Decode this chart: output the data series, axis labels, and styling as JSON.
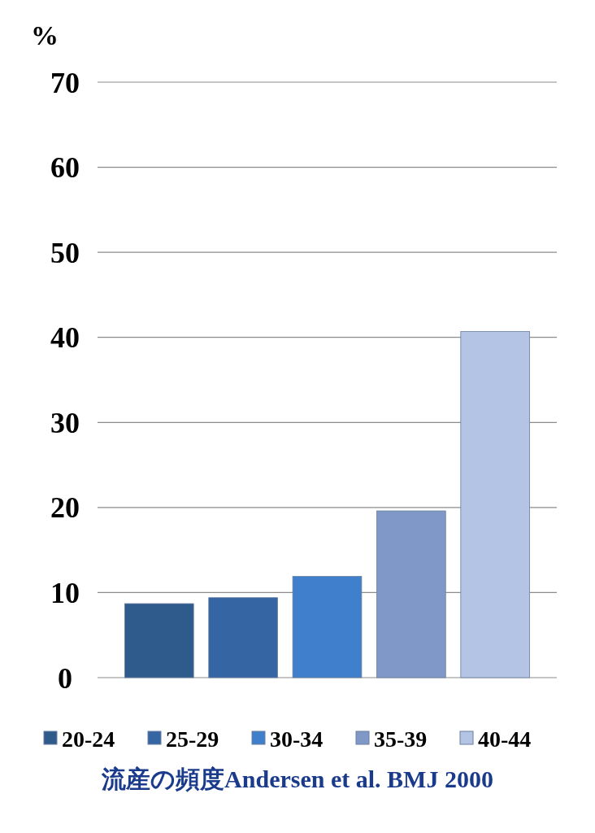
{
  "chart_data": {
    "type": "bar",
    "ylabel": "%",
    "categories": [
      null
    ],
    "ylim": [
      0,
      70
    ],
    "yticks": [
      0,
      10,
      20,
      30,
      40,
      50,
      60,
      70
    ],
    "grid": "y",
    "legend": "bottom",
    "series": [
      {
        "name": "20-24",
        "color": "#2e5a8c",
        "values": [
          8.7
        ]
      },
      {
        "name": "25-29",
        "color": "#3565a3",
        "values": [
          9.4
        ]
      },
      {
        "name": "30-34",
        "color": "#3f7fcc",
        "values": [
          11.9
        ]
      },
      {
        "name": "35-39",
        "color": "#7f98c8",
        "values": [
          19.6
        ]
      },
      {
        "name": "40-44",
        "color": "#b4c4e4",
        "values": [
          40.7
        ]
      }
    ],
    "annotations": [
      "流産の頻度Andersen et al. BMJ 2000"
    ]
  }
}
